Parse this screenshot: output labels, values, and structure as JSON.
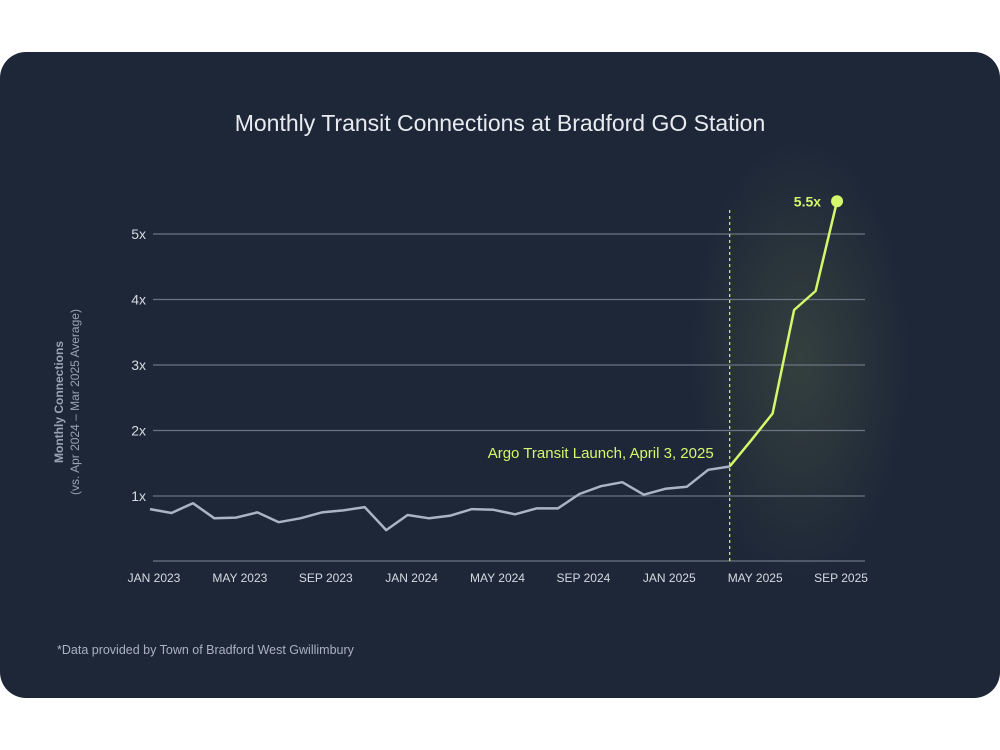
{
  "chart_data": {
    "type": "line",
    "title": "Monthly Transit Connections at Bradford GO Station",
    "ylabel": "Monthly Connections",
    "ylabel_sub": "(vs. Apr 2024 – Mar 2025 Average)",
    "ylim": [
      0,
      5.5
    ],
    "yticks": [
      {
        "v": 1,
        "label": "1x"
      },
      {
        "v": 2,
        "label": "2x"
      },
      {
        "v": 3,
        "label": "3x"
      },
      {
        "v": 4,
        "label": "4x"
      },
      {
        "v": 5,
        "label": "5x"
      }
    ],
    "xticks": [
      {
        "i": 0,
        "label": "JAN 2023"
      },
      {
        "i": 4,
        "label": "MAY 2023"
      },
      {
        "i": 8,
        "label": "SEP 2023"
      },
      {
        "i": 12,
        "label": "JAN 2024"
      },
      {
        "i": 16,
        "label": "MAY 2024"
      },
      {
        "i": 20,
        "label": "SEP 2024"
      },
      {
        "i": 24,
        "label": "JAN 2025"
      },
      {
        "i": 28,
        "label": "MAY 2025"
      },
      {
        "i": 32,
        "label": "SEP 2025"
      }
    ],
    "grid": true,
    "x": [
      "2023-01",
      "2023-02",
      "2023-03",
      "2023-04",
      "2023-05",
      "2023-06",
      "2023-07",
      "2023-08",
      "2023-09",
      "2023-10",
      "2023-11",
      "2023-12",
      "2024-01",
      "2024-02",
      "2024-03",
      "2024-04",
      "2024-05",
      "2024-06",
      "2024-07",
      "2024-08",
      "2024-09",
      "2024-10",
      "2024-11",
      "2024-12",
      "2025-01",
      "2025-02",
      "2025-03",
      "2025-04",
      "2025-05",
      "2025-06",
      "2025-07",
      "2025-08",
      "2025-09"
    ],
    "values": [
      0.8,
      0.74,
      0.89,
      0.66,
      0.67,
      0.75,
      0.6,
      0.66,
      0.75,
      0.78,
      0.83,
      0.48,
      0.71,
      0.66,
      0.7,
      0.8,
      0.79,
      0.72,
      0.81,
      0.81,
      1.03,
      1.15,
      1.21,
      1.02,
      1.11,
      1.14,
      1.4,
      1.45,
      1.85,
      2.26,
      3.84,
      4.13,
      5.5
    ],
    "highlight_from_index": 27,
    "colors": {
      "before": "#a9b4c4",
      "after": "#d4f76b",
      "background": "#1e2738",
      "grid": "#6b7483"
    },
    "annotation": {
      "label": "Argo Transit Launch, April 3, 2025",
      "at": "2025-04"
    },
    "end_label": "5.5x",
    "note": "*Data provided by Town of Bradford West Gwillimbury"
  }
}
